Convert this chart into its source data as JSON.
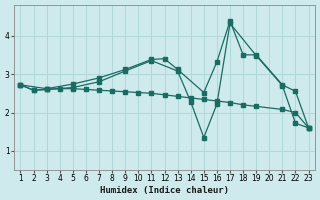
{
  "xlabel": "Humidex (Indice chaleur)",
  "bg_color": "#ceeaec",
  "grid_color": "#b0d8db",
  "line_color": "#1a6b62",
  "x_ticks": [
    1,
    2,
    3,
    4,
    5,
    6,
    7,
    8,
    9,
    10,
    11,
    12,
    13,
    14,
    15,
    16,
    17,
    18,
    19,
    20,
    21,
    22,
    23
  ],
  "y_ticks": [
    1,
    2,
    3,
    4
  ],
  "ylim": [
    0.5,
    4.8
  ],
  "xlim": [
    0.5,
    23.5
  ],
  "line1_x": [
    1,
    2,
    3,
    5,
    7,
    9,
    11,
    13,
    14,
    15,
    16,
    17,
    19,
    21,
    22,
    23
  ],
  "line1_y": [
    2.72,
    2.58,
    2.6,
    2.65,
    2.8,
    3.08,
    3.35,
    3.08,
    2.28,
    1.35,
    2.22,
    4.32,
    3.48,
    2.7,
    1.72,
    1.6
  ],
  "line2_x": [
    1,
    2,
    3,
    4,
    5,
    6,
    7,
    8,
    9,
    10,
    11,
    12,
    13,
    14,
    15,
    16,
    17,
    18,
    19,
    21,
    22,
    23
  ],
  "line2_y": [
    2.72,
    2.58,
    2.6,
    2.62,
    2.62,
    2.6,
    2.58,
    2.56,
    2.54,
    2.52,
    2.5,
    2.46,
    2.42,
    2.38,
    2.34,
    2.3,
    2.26,
    2.2,
    2.16,
    2.08,
    2.0,
    1.6
  ],
  "line3_x": [
    1,
    3,
    5,
    7,
    9,
    11,
    12,
    13,
    15,
    16,
    17,
    18,
    19,
    21,
    22,
    23
  ],
  "line3_y": [
    2.72,
    2.62,
    2.74,
    2.9,
    3.12,
    3.38,
    3.4,
    3.12,
    2.52,
    3.32,
    4.38,
    3.5,
    3.5,
    2.72,
    2.55,
    1.6
  ]
}
